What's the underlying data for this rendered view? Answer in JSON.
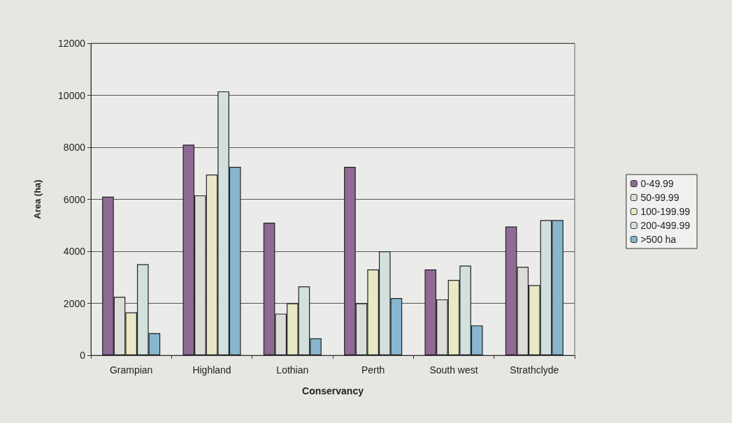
{
  "chart_data": {
    "type": "bar",
    "xlabel": "Conservancy",
    "ylabel": "Area (ha)",
    "categories": [
      "Grampian",
      "Highland",
      "Lothian",
      "Perth",
      "South west",
      "Strathclyde"
    ],
    "series": [
      {
        "name": "0-49.99",
        "color": "#8e6a95",
        "values": [
          6100,
          8100,
          5100,
          7250,
          3300,
          4950
        ]
      },
      {
        "name": "50-99.99",
        "color": "#dcdcd8",
        "values": [
          2250,
          6150,
          1600,
          2000,
          2150,
          3400
        ]
      },
      {
        "name": "100-199.99",
        "color": "#e8e8c6",
        "values": [
          1650,
          6950,
          2000,
          3300,
          2900,
          2700
        ]
      },
      {
        "name": "200-499.99",
        "color": "#d2e0de",
        "values": [
          3500,
          10150,
          2650,
          4000,
          3450,
          5200
        ]
      },
      {
        "name": ">500 ha",
        "color": "#88b6cf",
        "values": [
          850,
          7250,
          650,
          2200,
          1150,
          5200
        ]
      }
    ],
    "ylim": [
      0,
      12000
    ],
    "yticks": [
      0,
      2000,
      4000,
      6000,
      8000,
      10000,
      12000
    ],
    "grid": "y",
    "legend": "right"
  }
}
